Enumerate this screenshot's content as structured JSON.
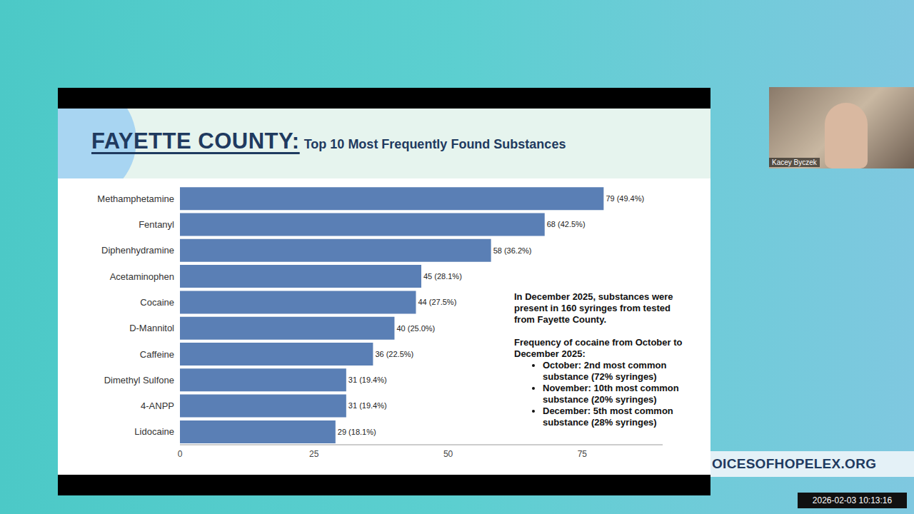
{
  "chart_data": {
    "type": "bar",
    "orientation": "horizontal",
    "title": "FAYETTE COUNTY:",
    "subtitle": "Top 10 Most Frequently Found Substances",
    "categories": [
      "Methamphetamine",
      "Fentanyl",
      "Diphenhydramine",
      "Acetaminophen",
      "Cocaine",
      "D-Mannitol",
      "Caffeine",
      "Dimethyl Sulfone",
      "4-ANPP",
      "Lidocaine"
    ],
    "values": [
      79,
      68,
      58,
      45,
      44,
      40,
      36,
      31,
      31,
      29
    ],
    "value_labels": [
      "79 (49.4%)",
      "68 (42.5%)",
      "58 (36.2%)",
      "45 (28.1%)",
      "44 (27.5%)",
      "40 (25.0%)",
      "36 (22.5%)",
      "31 (19.4%)",
      "31 (19.4%)",
      "29 (18.1%)"
    ],
    "color": "#5a7fb5",
    "xlim": [
      0,
      90
    ],
    "xticks": [
      0,
      25,
      50,
      75
    ],
    "grid": false,
    "data_labels": true,
    "annotations": {
      "text": "In December 2025, substances were present in 160 syringes from tested from Fayette County.",
      "heading": "Frequency of cocaine from October to December 2025:",
      "items": [
        "October: 2nd most common substance (72% syringes)",
        "November: 10th most common substance (20% syringes)",
        "December: 5th most common substance (28% syringes)"
      ]
    }
  },
  "screen": {
    "speaker": "Kacey Byczek",
    "website": "OICESOFHOPELEX.ORG",
    "timestamp": "2026-02-03 10:13:16"
  }
}
